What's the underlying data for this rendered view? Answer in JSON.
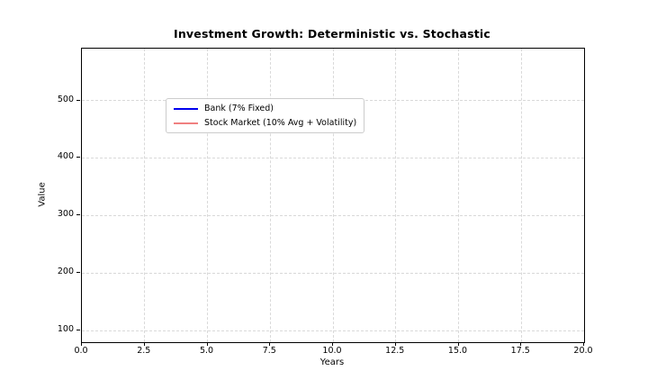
{
  "chart_data": {
    "type": "line",
    "title": "Investment Growth: Deterministic vs. Stochastic",
    "xlabel": "Years",
    "ylabel": "Value",
    "xlim": [
      0,
      20
    ],
    "ylim": [
      80,
      590
    ],
    "x_ticks": [
      0.0,
      2.5,
      5.0,
      7.5,
      10.0,
      12.5,
      15.0,
      17.5,
      20.0
    ],
    "x_tick_labels": [
      "0.0",
      "2.5",
      "5.0",
      "7.5",
      "10.0",
      "12.5",
      "15.0",
      "17.5",
      "20.0"
    ],
    "y_ticks": [
      100,
      200,
      300,
      400,
      500
    ],
    "y_tick_labels": [
      "100",
      "200",
      "300",
      "400",
      "500"
    ],
    "grid": "dashed",
    "grid_color": "#d9d9d9",
    "legend_position": "upper-left",
    "series": [
      {
        "name": "Bank (7% Fixed)",
        "color": "#0000ee",
        "x": [],
        "values": []
      },
      {
        "name": "Stock Market (10% Avg + Volatility)",
        "color": "#f08080",
        "x": [],
        "values": []
      }
    ]
  },
  "colors": {
    "background": "#ffffff",
    "spine": "#000000",
    "legend_border": "#cccccc",
    "text": "#000000"
  }
}
